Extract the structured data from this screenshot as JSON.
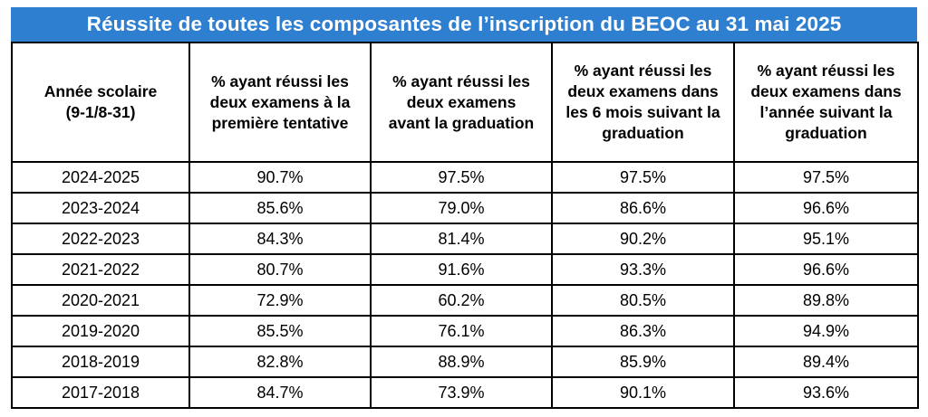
{
  "title": "Réussite de toutes les composantes de l’inscription du BEOC au 31 mai 2025",
  "colors": {
    "title_background": "#2f7fd0",
    "title_text": "#ffffff",
    "border": "#000000"
  },
  "table": {
    "headers": [
      "Année scolaire\n(9-1/8-31)",
      "% ayant réussi les\ndeux examens à la\npremière tentative",
      "% ayant réussi les\ndeux examens\navant la graduation",
      "% ayant réussi les\ndeux examens dans\nles 6 mois suivant la\ngraduation",
      "% ayant réussi les\ndeux examens dans\nl’année suivant la\ngraduation"
    ],
    "rows": [
      [
        "2024-2025",
        "90.7%",
        "97.5%",
        "97.5%",
        "97.5%"
      ],
      [
        "2023-2024",
        "85.6%",
        "79.0%",
        "86.6%",
        "96.6%"
      ],
      [
        "2022-2023",
        "84.3%",
        "81.4%",
        "90.2%",
        "95.1%"
      ],
      [
        "2021-2022",
        "80.7%",
        "91.6%",
        "93.3%",
        "96.6%"
      ],
      [
        "2020-2021",
        "72.9%",
        "60.2%",
        "80.5%",
        "89.8%"
      ],
      [
        "2019-2020",
        "85.5%",
        "76.1%",
        "86.3%",
        "94.9%"
      ],
      [
        "2018-2019",
        "82.8%",
        "88.9%",
        "85.9%",
        "89.4%"
      ],
      [
        "2017-2018",
        "84.7%",
        "73.9%",
        "90.1%",
        "93.6%"
      ]
    ]
  }
}
